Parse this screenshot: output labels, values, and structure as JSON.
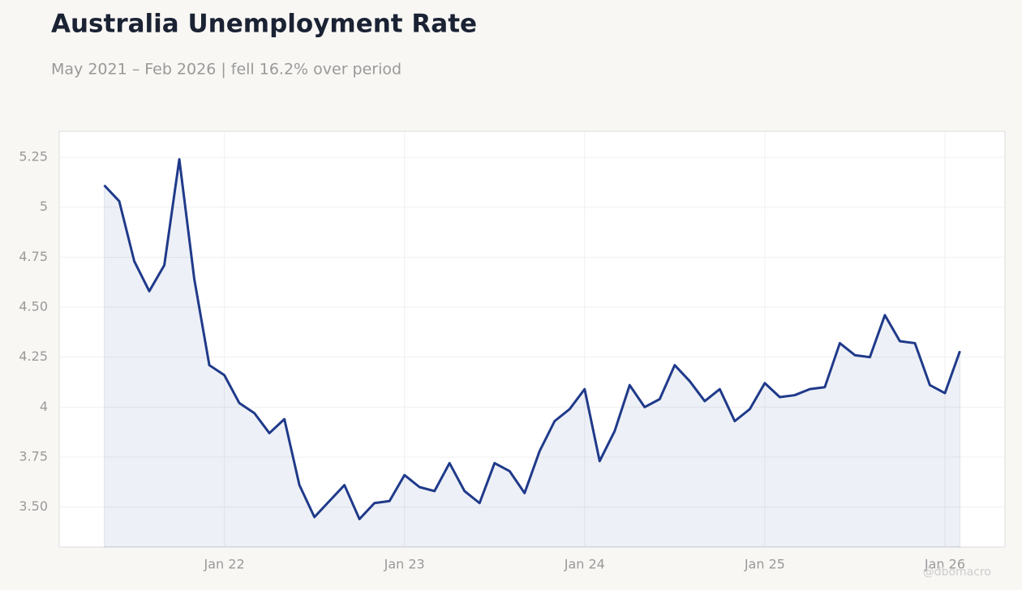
{
  "chart_data": {
    "type": "line",
    "title": "Australia Unemployment Rate",
    "subtitle": "May 2021 – Feb 2026 | fell 16.2% over period",
    "credit": "@dbomacro",
    "x": [
      "2021-05",
      "2021-06",
      "2021-07",
      "2021-08",
      "2021-09",
      "2021-10",
      "2021-11",
      "2021-12",
      "2022-01",
      "2022-02",
      "2022-03",
      "2022-04",
      "2022-05",
      "2022-06",
      "2022-07",
      "2022-08",
      "2022-09",
      "2022-10",
      "2022-11",
      "2022-12",
      "2023-01",
      "2023-02",
      "2023-03",
      "2023-04",
      "2023-05",
      "2023-06",
      "2023-07",
      "2023-08",
      "2023-09",
      "2023-10",
      "2023-11",
      "2023-12",
      "2024-01",
      "2024-02",
      "2024-03",
      "2024-04",
      "2024-05",
      "2024-06",
      "2024-07",
      "2024-08",
      "2024-09",
      "2024-10",
      "2024-11",
      "2024-12",
      "2025-01",
      "2025-02",
      "2025-03",
      "2025-04",
      "2025-05",
      "2025-06",
      "2025-07",
      "2025-08",
      "2025-09",
      "2025-10",
      "2025-11",
      "2025-12",
      "2026-01",
      "2026-02"
    ],
    "values": [
      5.11,
      5.03,
      4.73,
      4.58,
      4.71,
      5.24,
      4.64,
      4.21,
      4.16,
      4.02,
      3.97,
      3.87,
      3.94,
      3.61,
      3.45,
      3.53,
      3.61,
      3.44,
      3.52,
      3.53,
      3.66,
      3.6,
      3.58,
      3.72,
      3.58,
      3.52,
      3.72,
      3.68,
      3.57,
      3.78,
      3.93,
      3.99,
      4.09,
      3.73,
      3.88,
      4.11,
      4.0,
      4.04,
      4.21,
      4.13,
      4.03,
      4.09,
      3.93,
      3.99,
      4.12,
      4.05,
      4.06,
      4.09,
      4.1,
      4.32,
      4.26,
      4.25,
      4.46,
      4.33,
      4.32,
      4.11,
      4.07,
      4.28
    ],
    "color": "#1f3a8a",
    "xlim": [
      "2021-02",
      "2026-05"
    ],
    "xticks": [
      {
        "value": "2022-01",
        "label": "Jan 22"
      },
      {
        "value": "2023-01",
        "label": "Jan 23"
      },
      {
        "value": "2024-01",
        "label": "Jan 24"
      },
      {
        "value": "2025-01",
        "label": "Jan 25"
      },
      {
        "value": "2026-01",
        "label": "Jan 26"
      }
    ],
    "ylim": [
      3.3,
      5.38
    ],
    "yticks": [
      {
        "value": 3.5,
        "label": "3.50"
      },
      3.75,
      4,
      4.25,
      {
        "value": 4.5,
        "label": "4.50"
      },
      4.75,
      5,
      5.25
    ],
    "grid": true
  }
}
